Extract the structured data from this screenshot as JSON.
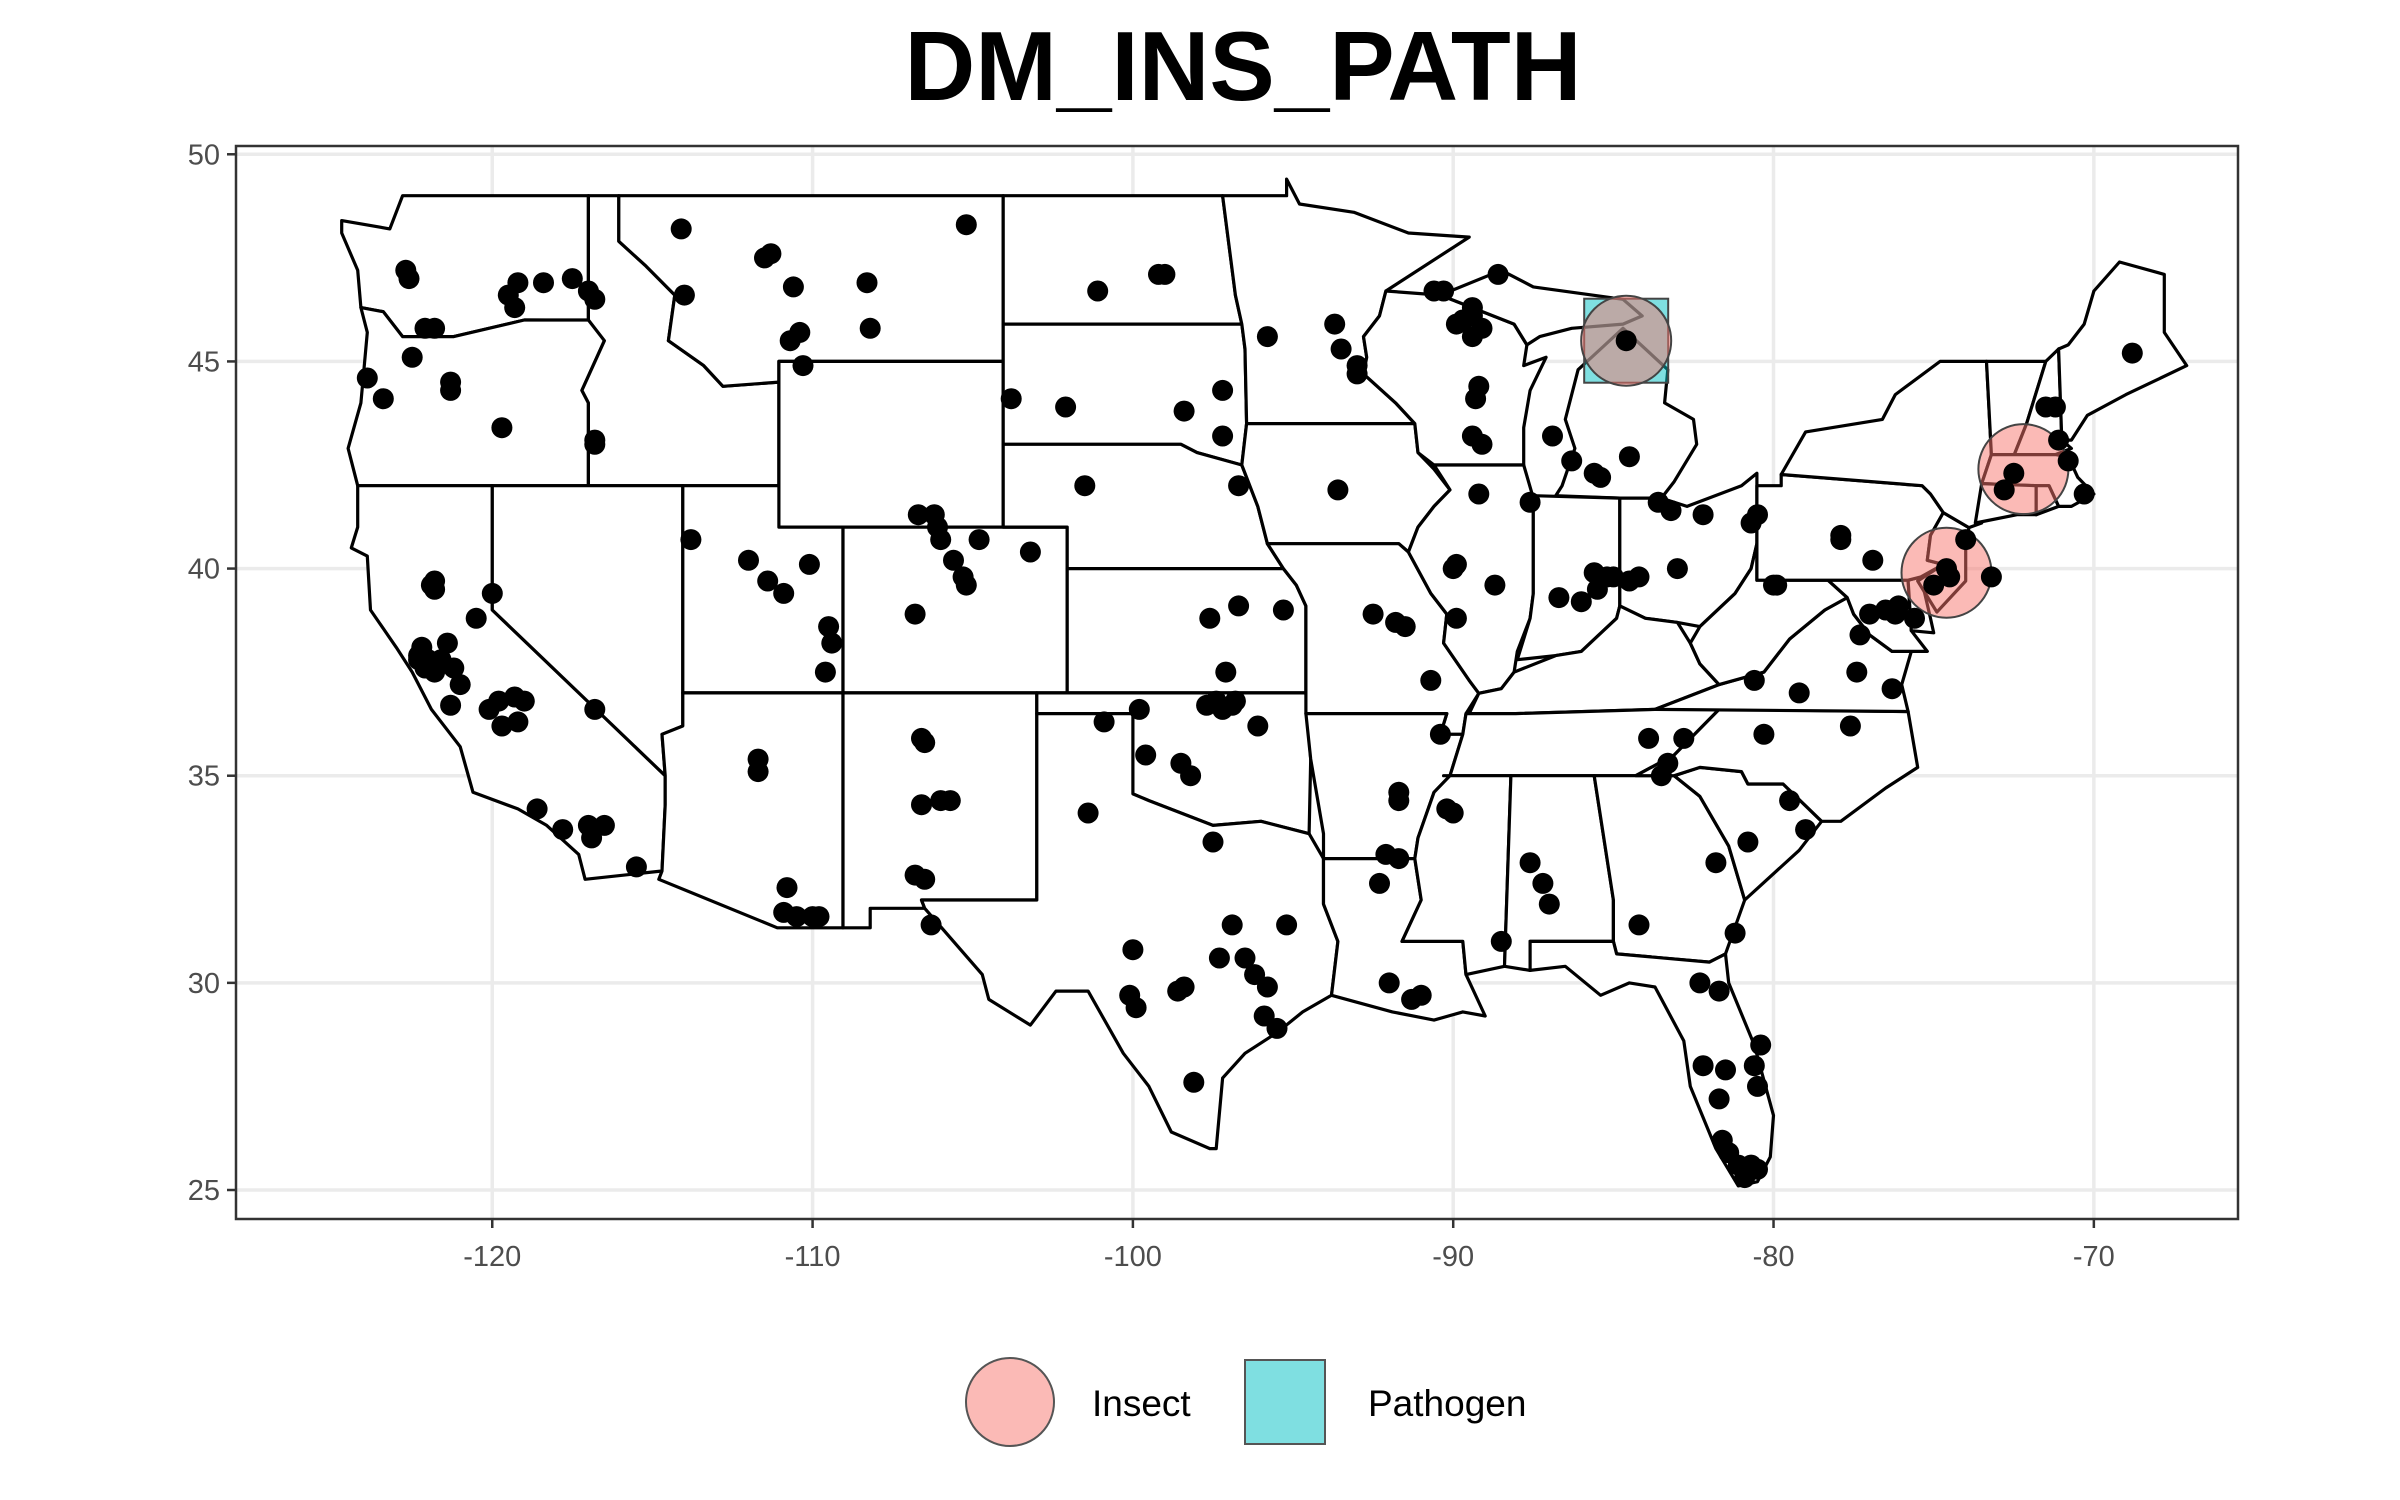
{
  "chart_data": {
    "type": "map-scatter",
    "title": "DM_INS_PATH",
    "xlabel": "",
    "ylabel": "",
    "xlim": [
      -128,
      -65.5
    ],
    "ylim": [
      24.3,
      50.2
    ],
    "x_ticks": [
      "-120",
      "-110",
      "-100",
      "-90",
      "-80",
      "-70"
    ],
    "x_tick_values": [
      -120,
      -110,
      -100,
      -90,
      -80,
      -70
    ],
    "y_ticks": [
      "25",
      "30",
      "35",
      "40",
      "45",
      "50"
    ],
    "y_tick_values": [
      25,
      30,
      35,
      40,
      45,
      50
    ],
    "grid": true,
    "legend_position": "bottom",
    "legend": [
      {
        "label": "Insect",
        "shape": "circle",
        "color": "#F8766D"
      },
      {
        "label": "Pathogen",
        "shape": "square",
        "color": "#00BFC4"
      }
    ],
    "highlights": [
      {
        "category": "Insect",
        "lon": -84.6,
        "lat": 45.5
      },
      {
        "category": "Pathogen",
        "lon": -84.6,
        "lat": 45.5
      },
      {
        "category": "Insect",
        "lon": -72.2,
        "lat": 42.4
      },
      {
        "category": "Insect",
        "lon": -74.6,
        "lat": 39.9
      }
    ],
    "points": [
      [
        -122.7,
        47.2
      ],
      [
        -122.6,
        47.0
      ],
      [
        -122.1,
        45.8
      ],
      [
        -121.8,
        45.8
      ],
      [
        -122.5,
        45.1
      ],
      [
        -123.9,
        44.6
      ],
      [
        -123.4,
        44.1
      ],
      [
        -121.3,
        44.5
      ],
      [
        -121.3,
        44.3
      ],
      [
        -119.7,
        43.4
      ],
      [
        -116.8,
        43.1
      ],
      [
        -116.8,
        43.0
      ],
      [
        -119.5,
        46.6
      ],
      [
        -119.3,
        46.3
      ],
      [
        -119.2,
        46.9
      ],
      [
        -118.4,
        46.9
      ],
      [
        -117.5,
        47.0
      ],
      [
        -117.0,
        46.7
      ],
      [
        -116.8,
        46.5
      ],
      [
        -114.1,
        48.2
      ],
      [
        -114.0,
        46.6
      ],
      [
        -111.5,
        47.5
      ],
      [
        -111.3,
        47.6
      ],
      [
        -110.6,
        46.8
      ],
      [
        -108.3,
        46.9
      ],
      [
        -110.4,
        45.7
      ],
      [
        -110.7,
        45.5
      ],
      [
        -108.2,
        45.8
      ],
      [
        -110.3,
        44.9
      ],
      [
        -105.2,
        48.3
      ],
      [
        -101.1,
        46.7
      ],
      [
        -99.2,
        47.1
      ],
      [
        -99.0,
        47.1
      ],
      [
        -95.8,
        45.6
      ],
      [
        -93.5,
        45.3
      ],
      [
        -97.2,
        44.3
      ],
      [
        -97.2,
        43.2
      ],
      [
        -98.4,
        43.8
      ],
      [
        -103.8,
        44.1
      ],
      [
        -102.1,
        43.9
      ],
      [
        -96.7,
        42.0
      ],
      [
        -101.5,
        42.0
      ],
      [
        -93.6,
        41.9
      ],
      [
        -121.9,
        39.6
      ],
      [
        -121.8,
        39.7
      ],
      [
        -121.8,
        39.5
      ],
      [
        -122.2,
        38.1
      ],
      [
        -122.3,
        37.8
      ],
      [
        -122.3,
        37.9
      ],
      [
        -122.1,
        37.6
      ],
      [
        -122.0,
        37.8
      ],
      [
        -121.8,
        37.5
      ],
      [
        -121.6,
        37.8
      ],
      [
        -121.4,
        38.2
      ],
      [
        -121.2,
        37.6
      ],
      [
        -121.0,
        37.2
      ],
      [
        -120.5,
        38.8
      ],
      [
        -120.0,
        39.4
      ],
      [
        -121.3,
        36.7
      ],
      [
        -120.1,
        36.6
      ],
      [
        -119.8,
        36.8
      ],
      [
        -119.3,
        36.9
      ],
      [
        -119.7,
        36.2
      ],
      [
        -119.2,
        36.3
      ],
      [
        -119.0,
        36.8
      ],
      [
        -118.6,
        34.2
      ],
      [
        -117.8,
        33.7
      ],
      [
        -117.0,
        33.8
      ],
      [
        -116.9,
        33.5
      ],
      [
        -116.5,
        33.8
      ],
      [
        -115.5,
        32.8
      ],
      [
        -116.8,
        36.6
      ],
      [
        -113.8,
        40.7
      ],
      [
        -112.0,
        40.2
      ],
      [
        -111.4,
        39.7
      ],
      [
        -110.9,
        39.4
      ],
      [
        -110.1,
        40.1
      ],
      [
        -109.5,
        38.6
      ],
      [
        -109.4,
        38.2
      ],
      [
        -109.6,
        37.5
      ],
      [
        -106.7,
        41.3
      ],
      [
        -106.2,
        41.3
      ],
      [
        -106.1,
        41.0
      ],
      [
        -106.0,
        40.7
      ],
      [
        -105.6,
        40.2
      ],
      [
        -105.3,
        39.8
      ],
      [
        -105.2,
        39.6
      ],
      [
        -104.8,
        40.7
      ],
      [
        -103.2,
        40.4
      ],
      [
        -106.8,
        38.9
      ],
      [
        -111.7,
        35.4
      ],
      [
        -111.7,
        35.1
      ],
      [
        -110.8,
        32.3
      ],
      [
        -110.9,
        31.7
      ],
      [
        -110.5,
        31.6
      ],
      [
        -110.0,
        31.6
      ],
      [
        -109.8,
        31.6
      ],
      [
        -106.6,
        35.9
      ],
      [
        -106.5,
        35.8
      ],
      [
        -106.6,
        34.3
      ],
      [
        -106.0,
        34.4
      ],
      [
        -105.7,
        34.4
      ],
      [
        -106.8,
        32.6
      ],
      [
        -106.5,
        32.5
      ],
      [
        -106.3,
        31.4
      ],
      [
        -101.4,
        34.1
      ],
      [
        -100.9,
        36.3
      ],
      [
        -99.8,
        36.6
      ],
      [
        -99.6,
        35.5
      ],
      [
        -98.5,
        35.3
      ],
      [
        -98.2,
        35.0
      ],
      [
        -97.4,
        36.8
      ],
      [
        -97.7,
        36.7
      ],
      [
        -96.8,
        36.8
      ],
      [
        -97.1,
        37.5
      ],
      [
        -96.7,
        39.1
      ],
      [
        -97.6,
        38.8
      ],
      [
        -95.3,
        39.0
      ],
      [
        -96.9,
        36.7
      ],
      [
        -96.1,
        36.2
      ],
      [
        -97.2,
        36.6
      ],
      [
        -97.5,
        33.4
      ],
      [
        -96.9,
        31.4
      ],
      [
        -95.2,
        31.4
      ],
      [
        -97.3,
        30.6
      ],
      [
        -96.5,
        30.6
      ],
      [
        -96.2,
        30.2
      ],
      [
        -95.8,
        29.9
      ],
      [
        -95.9,
        29.2
      ],
      [
        -95.5,
        28.9
      ],
      [
        -98.6,
        29.8
      ],
      [
        -98.4,
        29.9
      ],
      [
        -100.0,
        30.8
      ],
      [
        -100.1,
        29.7
      ],
      [
        -99.9,
        29.4
      ],
      [
        -98.1,
        27.6
      ],
      [
        -92.5,
        38.9
      ],
      [
        -91.5,
        38.6
      ],
      [
        -91.8,
        38.7
      ],
      [
        -89.9,
        38.8
      ],
      [
        -90.0,
        40.0
      ],
      [
        -89.9,
        40.1
      ],
      [
        -89.2,
        41.8
      ],
      [
        -90.7,
        37.3
      ],
      [
        -91.7,
        34.6
      ],
      [
        -91.7,
        34.4
      ],
      [
        -90.4,
        36.0
      ],
      [
        -90.2,
        34.2
      ],
      [
        -92.1,
        33.1
      ],
      [
        -91.7,
        33.0
      ],
      [
        -92.3,
        32.4
      ],
      [
        -92.0,
        30.0
      ],
      [
        -91.3,
        29.6
      ],
      [
        -91.0,
        29.7
      ],
      [
        -90.0,
        34.1
      ],
      [
        -89.7,
        46.0
      ],
      [
        -89.9,
        45.9
      ],
      [
        -89.4,
        46.1
      ],
      [
        -89.1,
        45.8
      ],
      [
        -89.4,
        46.3
      ],
      [
        -89.4,
        45.6
      ],
      [
        -89.2,
        44.4
      ],
      [
        -89.3,
        44.1
      ],
      [
        -89.4,
        43.2
      ],
      [
        -89.1,
        43.0
      ],
      [
        -93.0,
        44.9
      ],
      [
        -93.0,
        44.7
      ],
      [
        -93.7,
        45.9
      ],
      [
        -90.6,
        46.7
      ],
      [
        -90.3,
        46.7
      ],
      [
        -88.6,
        47.1
      ],
      [
        -86.9,
        43.2
      ],
      [
        -86.3,
        42.6
      ],
      [
        -85.6,
        42.3
      ],
      [
        -85.4,
        42.2
      ],
      [
        -84.5,
        42.7
      ],
      [
        -83.6,
        41.6
      ],
      [
        -83.2,
        41.4
      ],
      [
        -82.2,
        41.3
      ],
      [
        -80.7,
        41.1
      ],
      [
        -80.5,
        41.3
      ],
      [
        -83.0,
        40.0
      ],
      [
        -85.5,
        39.5
      ],
      [
        -86.0,
        39.2
      ],
      [
        -84.2,
        39.8
      ],
      [
        -84.5,
        39.7
      ],
      [
        -85.2,
        39.8
      ],
      [
        -85.0,
        39.8
      ],
      [
        -85.6,
        39.9
      ],
      [
        -86.7,
        39.3
      ],
      [
        -80.0,
        39.6
      ],
      [
        -80.6,
        37.3
      ],
      [
        -80.3,
        36.0
      ],
      [
        -82.8,
        35.9
      ],
      [
        -83.3,
        35.3
      ],
      [
        -83.9,
        35.9
      ],
      [
        -83.5,
        35.0
      ],
      [
        -80.8,
        33.4
      ],
      [
        -81.8,
        32.9
      ],
      [
        -81.2,
        31.2
      ],
      [
        -82.3,
        30.0
      ],
      [
        -81.7,
        29.8
      ],
      [
        -82.2,
        28.0
      ],
      [
        -81.5,
        27.9
      ],
      [
        -81.7,
        27.2
      ],
      [
        -81.6,
        26.2
      ],
      [
        -81.4,
        25.9
      ],
      [
        -81.1,
        25.6
      ],
      [
        -80.9,
        25.3
      ],
      [
        -80.7,
        25.6
      ],
      [
        -80.5,
        25.5
      ],
      [
        -80.5,
        27.5
      ],
      [
        -80.6,
        28.0
      ],
      [
        -80.4,
        28.5
      ],
      [
        -87.0,
        31.9
      ],
      [
        -87.2,
        32.4
      ],
      [
        -87.6,
        32.9
      ],
      [
        -88.5,
        31.0
      ],
      [
        -84.2,
        31.4
      ],
      [
        -88.7,
        39.6
      ],
      [
        -87.6,
        41.6
      ],
      [
        -79.9,
        39.6
      ],
      [
        -77.9,
        40.8
      ],
      [
        -77.9,
        40.7
      ],
      [
        -76.9,
        40.2
      ],
      [
        -77.3,
        38.4
      ],
      [
        -77.0,
        38.9
      ],
      [
        -76.5,
        39.0
      ],
      [
        -77.4,
        37.5
      ],
      [
        -79.2,
        37.0
      ],
      [
        -77.6,
        36.2
      ],
      [
        -79.5,
        34.4
      ],
      [
        -79.0,
        33.7
      ],
      [
        -76.3,
        37.1
      ],
      [
        -76.2,
        38.9
      ],
      [
        -75.6,
        38.8
      ],
      [
        -76.1,
        39.1
      ],
      [
        -75.0,
        39.6
      ],
      [
        -74.6,
        40.0
      ],
      [
        -74.5,
        39.8
      ],
      [
        -74.0,
        40.7
      ],
      [
        -72.8,
        41.9
      ],
      [
        -72.5,
        42.3
      ],
      [
        -71.5,
        43.9
      ],
      [
        -71.2,
        43.9
      ],
      [
        -71.1,
        43.1
      ],
      [
        -70.8,
        42.6
      ],
      [
        -70.3,
        41.8
      ],
      [
        -68.8,
        45.2
      ],
      [
        -73.2,
        39.8
      ],
      [
        -84.6,
        45.5
      ]
    ]
  }
}
